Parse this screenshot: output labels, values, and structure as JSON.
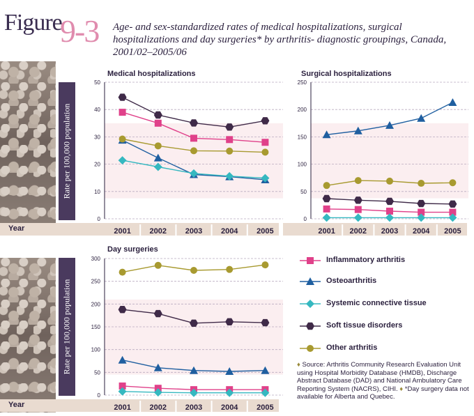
{
  "figure": {
    "word": "Figure",
    "number": "9-3",
    "title": "Age- and sex-standardized rates of medical hospitalizations, surgical hospitalizations and day surgeries* by arthritis- diagnostic groupings, Canada, 2001/02–2005/06"
  },
  "ylabel": "Rate per 100,000 population",
  "year_label": "Year",
  "colors": {
    "Inflammatory arthritis": "#e0418a",
    "Osteoarthritis": "#1f5fa0",
    "Systemic connective tissue": "#35b8c0",
    "Soft tissue disorders": "#3f2a48",
    "Other arthritis": "#a89a30"
  },
  "legend": [
    {
      "name": "Inflammatory arthritis",
      "marker": "square"
    },
    {
      "name": "Osteoarthritis",
      "marker": "triangle"
    },
    {
      "name": "Systemic connective tissue",
      "marker": "diamond"
    },
    {
      "name": "Soft tissue disorders",
      "marker": "hexagon"
    },
    {
      "name": "Other arthritis",
      "marker": "circle"
    }
  ],
  "source": {
    "marker": "♦",
    "text1": "Source: Arthritis Community Research Evaluation Unit using Hospital Morbidity Database (HMDB), Discharge Abstract Database (DAD) and National Ambulatory Care Reporting System (NACRS), CIHI.",
    "marker2": "♦",
    "text2": "*Day surgery data not available for Alberta and Quebec."
  },
  "chart_data": [
    {
      "type": "line",
      "title": "Medical hospitalizations",
      "categories": [
        "2001",
        "2002",
        "2003",
        "2004",
        "2005"
      ],
      "ylim": [
        0,
        50
      ],
      "yticks": [
        0,
        10,
        20,
        30,
        40,
        50
      ],
      "ylabel": "Rate per 100,000 population",
      "xlabel": "Year",
      "series": [
        {
          "name": "Inflammatory arthritis",
          "values": [
            39.0,
            35.0,
            29.5,
            29.0,
            28.0
          ]
        },
        {
          "name": "Osteoarthritis",
          "values": [
            28.8,
            22.3,
            16.2,
            15.4,
            14.3
          ]
        },
        {
          "name": "Systemic connective tissue",
          "values": [
            21.4,
            19.0,
            16.6,
            15.6,
            14.9
          ]
        },
        {
          "name": "Soft tissue disorders",
          "values": [
            44.5,
            38.0,
            35.1,
            33.6,
            35.9
          ]
        },
        {
          "name": "Other arthritis",
          "values": [
            29.2,
            26.7,
            24.9,
            24.8,
            24.4
          ]
        }
      ]
    },
    {
      "type": "line",
      "title": "Surgical hospitalizations",
      "categories": [
        "2001",
        "2002",
        "2003",
        "2004",
        "2005"
      ],
      "ylim": [
        0,
        250
      ],
      "yticks": [
        0,
        50,
        100,
        150,
        200,
        250
      ],
      "series": [
        {
          "name": "Inflammatory arthritis",
          "values": [
            18,
            17,
            14,
            12,
            12
          ]
        },
        {
          "name": "Osteoarthritis",
          "values": [
            154,
            161,
            171,
            184,
            213
          ]
        },
        {
          "name": "Systemic connective tissue",
          "values": [
            2,
            2,
            2,
            2,
            2
          ]
        },
        {
          "name": "Soft tissue disorders",
          "values": [
            37,
            34,
            32,
            28,
            27
          ]
        },
        {
          "name": "Other arthritis",
          "values": [
            61,
            70,
            69,
            65,
            66
          ]
        }
      ]
    },
    {
      "type": "line",
      "title": "Day surgeries",
      "categories": [
        "2001",
        "2002",
        "2003",
        "2004",
        "2005"
      ],
      "ylim": [
        0,
        300
      ],
      "yticks": [
        0,
        50,
        100,
        150,
        200,
        250,
        300
      ],
      "ylabel": "Rate per 100,000 population",
      "xlabel": "Year",
      "series": [
        {
          "name": "Inflammatory arthritis",
          "values": [
            20,
            15,
            12,
            12,
            12
          ]
        },
        {
          "name": "Osteoarthritis",
          "values": [
            77,
            60,
            54,
            52,
            54
          ]
        },
        {
          "name": "Systemic connective tissue",
          "values": [
            8,
            6,
            5,
            5,
            5
          ]
        },
        {
          "name": "Soft tissue disorders",
          "values": [
            188,
            179,
            158,
            161,
            159
          ]
        },
        {
          "name": "Other arthritis",
          "values": [
            270,
            285,
            274,
            276,
            286
          ]
        }
      ]
    }
  ]
}
